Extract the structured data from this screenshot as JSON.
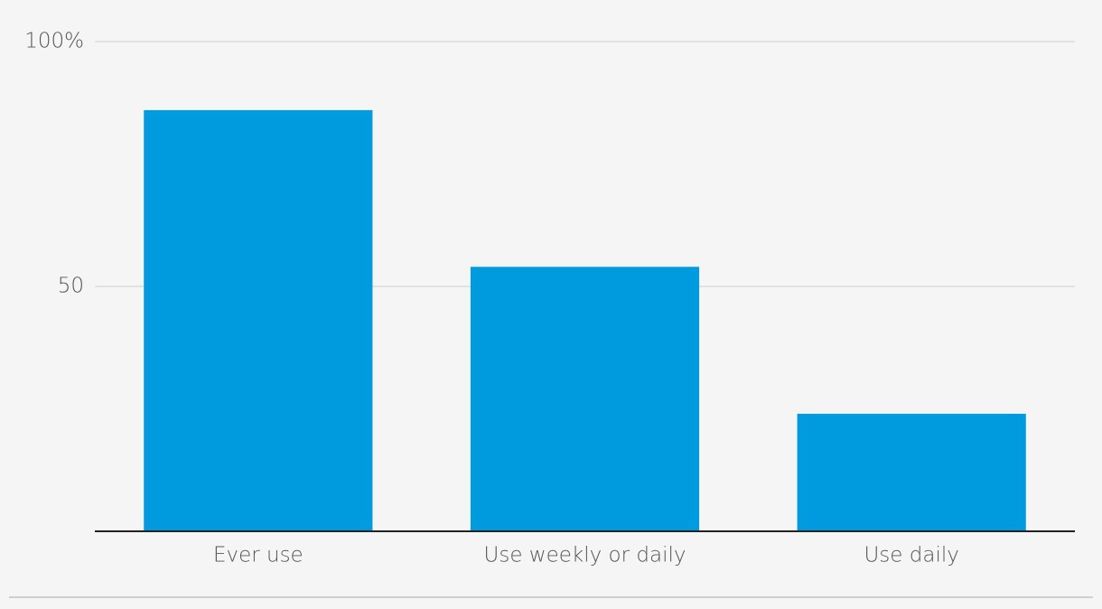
{
  "chart_data": {
    "type": "bar",
    "categories": [
      "Ever use",
      "Use weekly or daily",
      "Use daily"
    ],
    "values": [
      86,
      54,
      24
    ],
    "color": "#009ade",
    "ylim": [
      0,
      100
    ],
    "yticks": [
      50,
      {
        "value": 100,
        "label": "100%"
      }
    ],
    "grid": true
  }
}
